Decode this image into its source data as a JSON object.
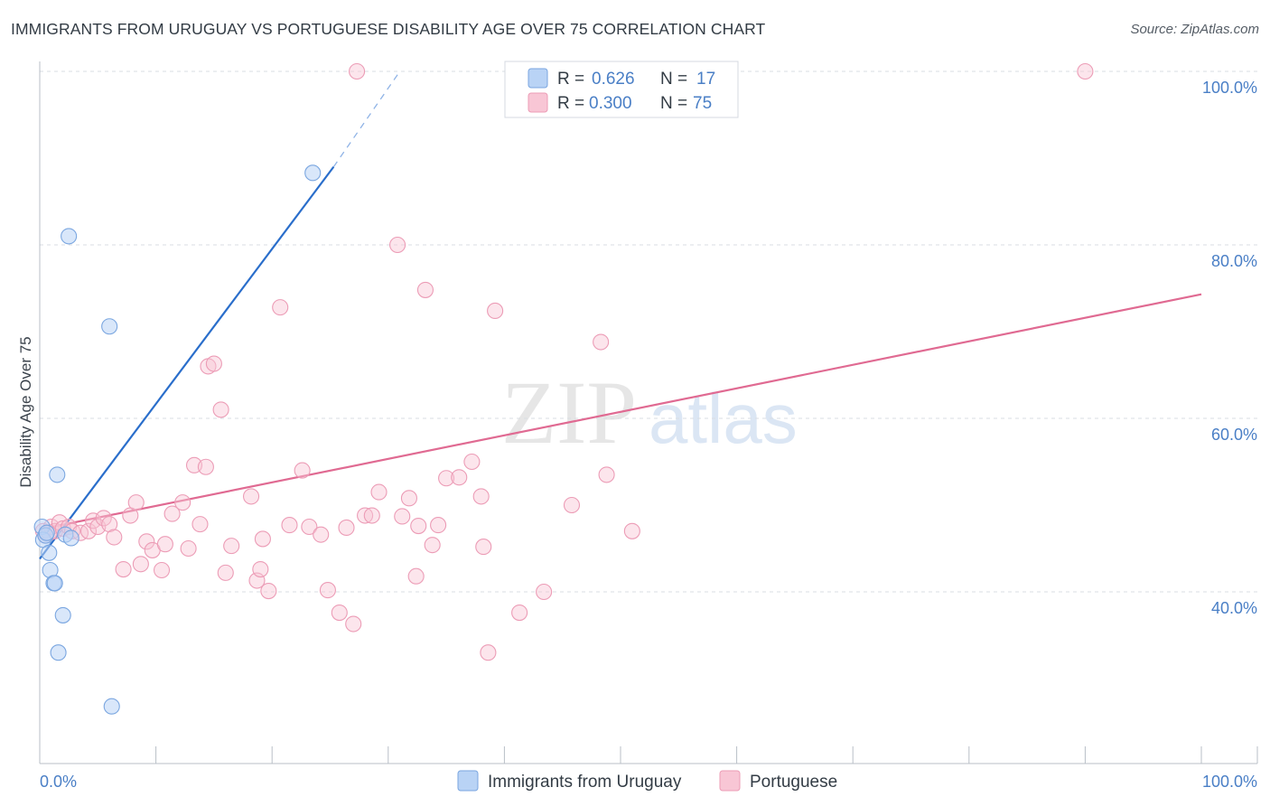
{
  "title": "IMMIGRANTS FROM URUGUAY VS PORTUGUESE DISABILITY AGE OVER 75 CORRELATION CHART",
  "source": "Source: ZipAtlas.com",
  "watermark": {
    "zip": "ZIP",
    "atlas": "atlas"
  },
  "colors": {
    "blue_fill": "#b9d3f5",
    "blue_stroke": "#7aa6e0",
    "blue_line": "#2a6ecb",
    "pink_fill": "#f8c6d5",
    "pink_stroke": "#ec9cb6",
    "pink_line": "#e06a92",
    "grid": "#d8dde3",
    "tick_text": "#4a7fc6"
  },
  "legend": {
    "row1": {
      "r_label": "R =",
      "r_value": "0.626",
      "n_label": "N =",
      "n_value": "17"
    },
    "row2": {
      "r_label": "R =",
      "r_value": "0.300",
      "n_label": "N =",
      "n_value": "75"
    }
  },
  "chart_data": {
    "type": "scatter",
    "title": "IMMIGRANTS FROM URUGUAY VS PORTUGUESE DISABILITY AGE OVER 75 CORRELATION CHART",
    "xlabel": "",
    "ylabel": "Disability Age Over 75",
    "xlim": [
      0,
      100
    ],
    "ylim": [
      20,
      103
    ],
    "x_tick_labels": [
      "0.0%",
      "100.0%"
    ],
    "y_ticks": [
      40,
      60,
      80,
      100
    ],
    "y_tick_labels": [
      "40.0%",
      "60.0%",
      "80.0%",
      "100.0%"
    ],
    "grid": true,
    "series": [
      {
        "name": "Immigrants from Uruguay",
        "color": "blue",
        "R": 0.626,
        "N": 17,
        "trend": {
          "x0": 0,
          "y0": 43.8,
          "x1": 25.3,
          "y1": 89.0,
          "dash_to_x": 31.0,
          "dash_to_y": 100.0
        },
        "points": [
          [
            0.2,
            47.5
          ],
          [
            0.3,
            46.0
          ],
          [
            0.5,
            46.5
          ],
          [
            0.6,
            46.8
          ],
          [
            0.8,
            44.5
          ],
          [
            0.9,
            42.5
          ],
          [
            1.2,
            41.0
          ],
          [
            1.3,
            41.0
          ],
          [
            1.5,
            53.5
          ],
          [
            1.6,
            33.0
          ],
          [
            2.0,
            37.3
          ],
          [
            2.2,
            46.6
          ],
          [
            2.5,
            81.0
          ],
          [
            2.7,
            46.2
          ],
          [
            6.0,
            70.6
          ],
          [
            6.2,
            26.8
          ],
          [
            23.5,
            88.3
          ]
        ]
      },
      {
        "name": "Portuguese",
        "color": "pink",
        "R": 0.3,
        "N": 75,
        "trend": {
          "x0": 0,
          "y0": 47.2,
          "x1": 100,
          "y1": 74.3
        },
        "points": [
          [
            0.3,
            47.0
          ],
          [
            0.5,
            46.5
          ],
          [
            0.8,
            46.8
          ],
          [
            1.0,
            47.5
          ],
          [
            1.3,
            47.0
          ],
          [
            1.7,
            48.0
          ],
          [
            2.0,
            47.3
          ],
          [
            2.5,
            47.5
          ],
          [
            2.8,
            47.0
          ],
          [
            3.5,
            46.8
          ],
          [
            4.2,
            47.0
          ],
          [
            4.6,
            48.2
          ],
          [
            5.0,
            47.5
          ],
          [
            5.5,
            48.5
          ],
          [
            6.0,
            47.8
          ],
          [
            6.4,
            46.3
          ],
          [
            7.2,
            42.6
          ],
          [
            7.8,
            48.8
          ],
          [
            8.3,
            50.3
          ],
          [
            8.7,
            43.2
          ],
          [
            9.2,
            45.8
          ],
          [
            9.7,
            44.8
          ],
          [
            10.5,
            42.5
          ],
          [
            10.8,
            45.5
          ],
          [
            11.4,
            49.0
          ],
          [
            12.3,
            50.3
          ],
          [
            12.8,
            45.0
          ],
          [
            13.3,
            54.6
          ],
          [
            13.8,
            47.8
          ],
          [
            14.3,
            54.4
          ],
          [
            14.5,
            66.0
          ],
          [
            15.0,
            66.3
          ],
          [
            15.6,
            61.0
          ],
          [
            16.0,
            42.2
          ],
          [
            16.5,
            45.3
          ],
          [
            18.2,
            51.0
          ],
          [
            18.7,
            41.3
          ],
          [
            19.0,
            42.6
          ],
          [
            19.2,
            46.1
          ],
          [
            19.7,
            40.1
          ],
          [
            20.7,
            72.8
          ],
          [
            21.5,
            47.7
          ],
          [
            22.6,
            54.0
          ],
          [
            23.2,
            47.5
          ],
          [
            24.2,
            46.6
          ],
          [
            24.8,
            40.2
          ],
          [
            25.8,
            37.6
          ],
          [
            26.4,
            47.4
          ],
          [
            27.0,
            36.3
          ],
          [
            28.0,
            48.8
          ],
          [
            28.6,
            48.8
          ],
          [
            29.2,
            51.5
          ],
          [
            30.8,
            80.0
          ],
          [
            31.2,
            48.7
          ],
          [
            31.8,
            50.8
          ],
          [
            32.4,
            41.8
          ],
          [
            32.6,
            47.6
          ],
          [
            33.2,
            74.8
          ],
          [
            33.8,
            45.4
          ],
          [
            34.3,
            47.7
          ],
          [
            35.0,
            53.1
          ],
          [
            36.1,
            53.2
          ],
          [
            37.2,
            55.0
          ],
          [
            38.0,
            51.0
          ],
          [
            38.2,
            45.2
          ],
          [
            38.6,
            33.0
          ],
          [
            39.2,
            72.4
          ],
          [
            41.3,
            37.6
          ],
          [
            43.4,
            40.0
          ],
          [
            45.8,
            50.0
          ],
          [
            48.3,
            68.8
          ],
          [
            48.8,
            53.5
          ],
          [
            51.0,
            47.0
          ],
          [
            90.0,
            100.0
          ],
          [
            27.3,
            100.0
          ]
        ]
      }
    ]
  },
  "bottom_legend": {
    "series1": "Immigrants from Uruguay",
    "series2": "Portuguese"
  }
}
